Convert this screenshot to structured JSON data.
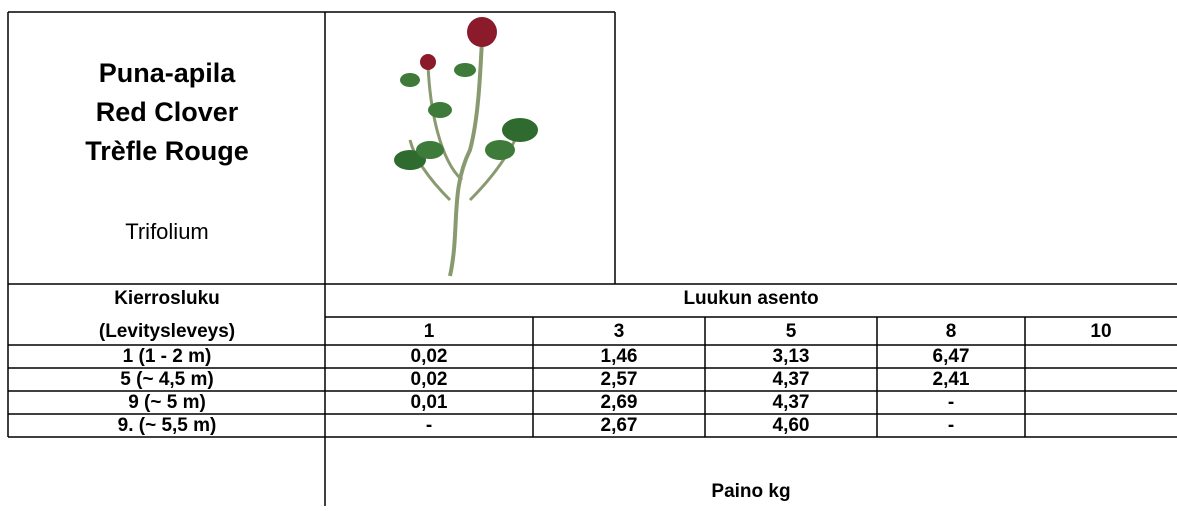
{
  "header": {
    "title_lines": [
      "Puna-apila",
      "Red Clover",
      "Trèfle Rouge"
    ],
    "latin_name": "Trifolium"
  },
  "table": {
    "row_header": [
      "Kierrosluku",
      "(Levitysleveys)"
    ],
    "column_group": "Luukun asento",
    "columns": [
      "1",
      "3",
      "5",
      "8",
      "10"
    ],
    "rows": [
      [
        "1 (1 - 2 m)",
        "0,02",
        "1,46",
        "3,13",
        "6,47",
        ""
      ],
      [
        "5 (~ 4,5 m)",
        "0,02",
        "2,57",
        "4,37",
        "2,41",
        ""
      ],
      [
        "9 (~ 5 m)",
        "0,01",
        "2,69",
        "4,37",
        "-",
        ""
      ],
      [
        "9. (~ 5,5 m)",
        "-",
        "2,67",
        "4,60",
        "-",
        ""
      ]
    ],
    "footer": "Paino kg"
  }
}
